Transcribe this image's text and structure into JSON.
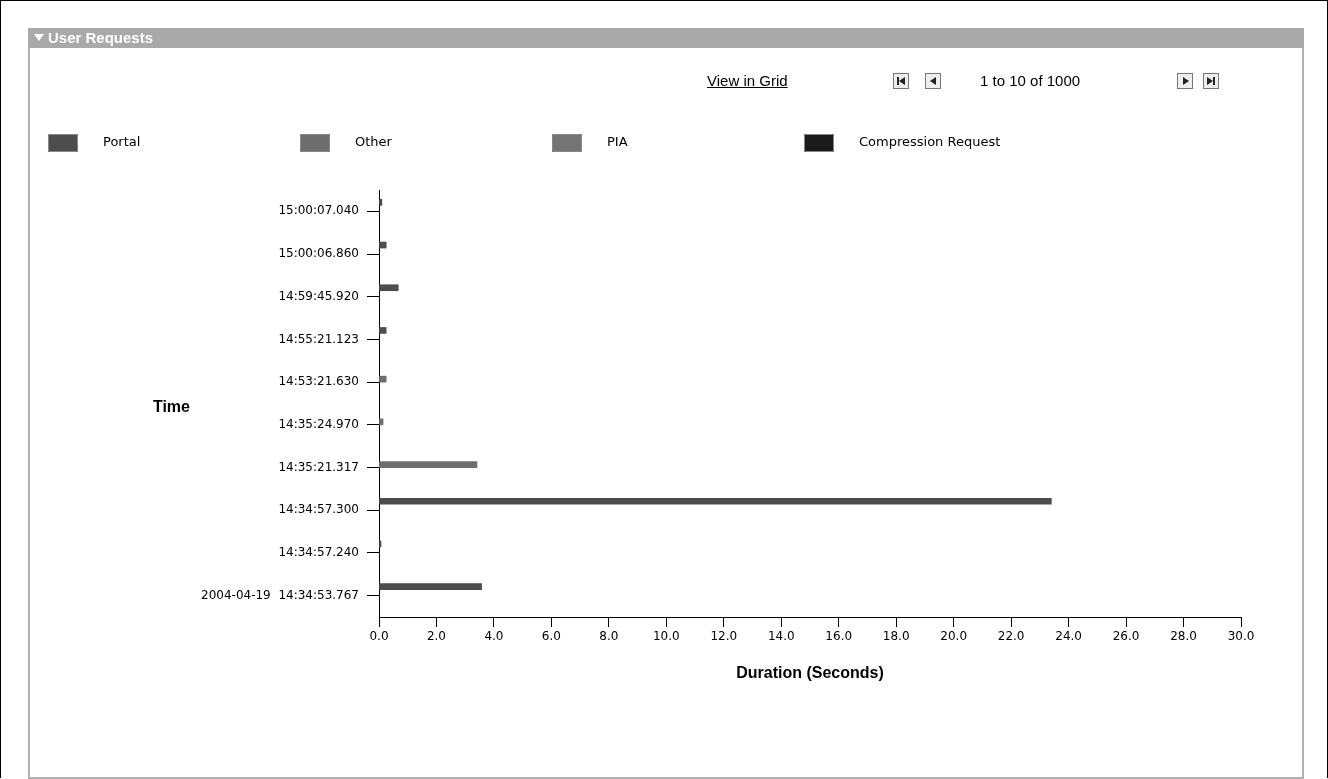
{
  "chart_data": {
    "type": "bar",
    "orientation": "horizontal",
    "title": "User Requests",
    "xlabel": "Duration (Seconds)",
    "ylabel": "Time",
    "annotations": [
      "View in Grid",
      "1 to 10 of 1000"
    ],
    "categories": [
      "15:00:07.040",
      "15:00:06.860",
      "14:59:45.920",
      "14:55:21.123",
      "14:53:21.630",
      "14:35:24.970",
      "14:35:21.317",
      "14:34:57.300",
      "14:34:57.240",
      "2004-04-19  14:34:53.767"
    ],
    "series": [
      {
        "name": "Portal",
        "color": "#4d4d4d",
        "values": [
          0.1,
          0.25,
          0.67,
          0.25,
          null,
          null,
          null,
          23.4,
          0.07,
          3.57
        ]
      },
      {
        "name": "Other",
        "color": "#6e6e6e",
        "values": [
          null,
          null,
          null,
          null,
          0.25,
          0.14,
          3.41,
          null,
          null,
          null
        ]
      },
      {
        "name": "PIA",
        "color": "#757575",
        "values": [
          null,
          null,
          null,
          null,
          null,
          null,
          null,
          null,
          null,
          null
        ]
      },
      {
        "name": "Compression Request",
        "color": "#1a1a1a",
        "values": [
          null,
          null,
          null,
          null,
          null,
          null,
          null,
          null,
          null,
          null
        ]
      }
    ],
    "xlim": [
      0,
      30
    ],
    "xticks": [
      {
        "value": 0,
        "label": "0.0"
      },
      {
        "value": 2,
        "label": "2.0"
      },
      {
        "value": 4,
        "label": "4.0"
      },
      {
        "value": 6,
        "label": "6.0"
      },
      {
        "value": 8,
        "label": "8.0"
      },
      {
        "value": 10,
        "label": "10.0"
      },
      {
        "value": 12,
        "label": "12.0"
      },
      {
        "value": 14,
        "label": "14.0"
      },
      {
        "value": 16,
        "label": "16.0"
      },
      {
        "value": 18,
        "label": "18.0"
      },
      {
        "value": 20,
        "label": "20.0"
      },
      {
        "value": 22,
        "label": "22.0"
      },
      {
        "value": 24,
        "label": "24.0"
      },
      {
        "value": 26,
        "label": "26.0"
      },
      {
        "value": 28,
        "label": "28.0"
      },
      {
        "value": 30,
        "label": "30.0"
      }
    ],
    "grid": false,
    "legend": "top left"
  }
}
